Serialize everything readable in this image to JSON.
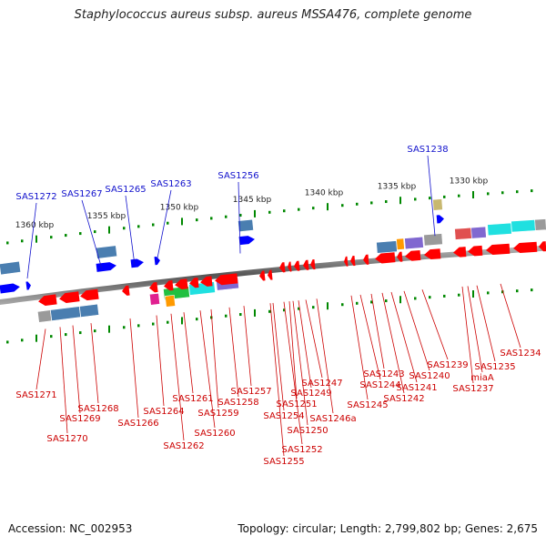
{
  "title": "Staphylococcus aureus subsp. aureus MSSA476, complete genome",
  "footer": {
    "accession": "Accession: NC_002953",
    "summary": "Topology: circular; Length: 2,799,802 bp; Genes: 2,675"
  },
  "colors": {
    "forward_gene": "#0000ff",
    "reverse_gene": "#ff0000",
    "forward_label": "#1010cc",
    "reverse_label": "#cc0000",
    "tick": "#008800",
    "backbone": "#777777"
  },
  "scale_labels": [
    "1360 kbp",
    "1355 kbp",
    "1350 kbp",
    "1345 kbp",
    "1340 kbp",
    "1335 kbp",
    "1330 kbp"
  ],
  "forward_genes": [
    "SAS1272",
    "SAS1267",
    "SAS1265",
    "SAS1263",
    "SAS1256",
    "SAS1238"
  ],
  "reverse_genes": [
    "SAS1271",
    "SAS1270",
    "SAS1269",
    "SAS1268",
    "SAS1266",
    "SAS1264",
    "SAS1262",
    "SAS1261",
    "SAS1260",
    "SAS1259",
    "SAS1258",
    "SAS1257",
    "SAS1255",
    "SAS1254",
    "SAS1252",
    "SAS1251",
    "SAS1250",
    "SAS1249",
    "SAS1247",
    "SAS1246a",
    "SAS1245",
    "SAS1244",
    "SAS1243",
    "SAS1242",
    "SAS1241",
    "SAS1240",
    "SAS1239",
    "SAS1237",
    "miaA",
    "SAS1235",
    "SAS1234"
  ],
  "cds_color_map": [
    "#4a7eb0",
    "#9a9a9a",
    "#20e0e0",
    "#8068d0",
    "#e05050",
    "#ff9a00",
    "#20c040",
    "#e02090",
    "#c8b870"
  ]
}
